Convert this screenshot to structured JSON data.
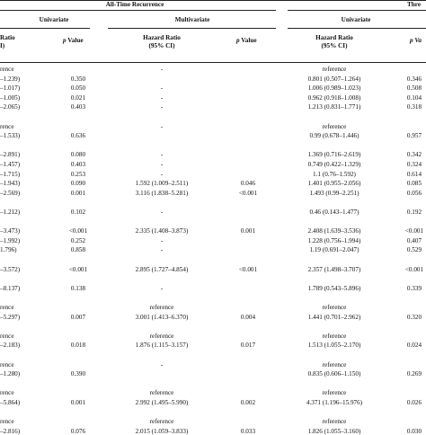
{
  "group_headers": {
    "all_time": "All-Time Recurrence",
    "three_partial": "Thre"
  },
  "sub_headers": {
    "univariate_left": "Univariate",
    "multivariate": "Multivariate",
    "univariate_right": "Univariate"
  },
  "columns": {
    "hr_left_line1": "Ratio",
    "hr_left_line2": "I)",
    "p_left_italic": "p",
    "p_left_rest": " Value",
    "hr_mid_line1": "Hazard Ratio",
    "hr_mid_line2": "(95% CI)",
    "p_mid_italic": "p",
    "p_mid_rest": " Value",
    "hr_right_line1": "Hazard Ratio",
    "hr_right_line2": "(95% CI)",
    "p_right_partial": "p Va"
  },
  "rows": [
    {
      "c1": "rence",
      "c2": "",
      "c3": "-",
      "c4": "",
      "c5": "reference",
      "c6": ""
    },
    {
      "c1": "–1.239)",
      "c2": "0.350",
      "c3": "",
      "c4": "",
      "c5": "0.801 (0.507–1.264)",
      "c6": "0.346"
    },
    {
      "c1": "–1.017)",
      "c2": "0.050",
      "c3": "-",
      "c4": "",
      "c5": "1.006 (0.989–1.023)",
      "c6": "0.508"
    },
    {
      "c1": "–1.005)",
      "c2": "0.021",
      "c3": "-",
      "c4": "",
      "c5": "0.962 (0.918–1.008)",
      "c6": "0.104"
    },
    {
      "c1": "–2.065)",
      "c2": "0.403",
      "c3": "-",
      "c4": "",
      "c5": "1.213 (0.831–1.771)",
      "c6": "0.318"
    },
    {
      "c1": "",
      "c2": "",
      "c3": "",
      "c4": "",
      "c5": "",
      "c6": ""
    },
    {
      "c1": "rence",
      "c2": "",
      "c3": "-",
      "c4": "",
      "c5": "reference",
      "c6": ""
    },
    {
      "c1": "–1.533)",
      "c2": "0.636",
      "c3": "",
      "c4": "",
      "c5": "0.99 (0.678–1.446)",
      "c6": "0.957"
    },
    {
      "c1": "",
      "c2": "",
      "c3": "",
      "c4": "",
      "c5": "",
      "c6": ""
    },
    {
      "c1": "–2.891)",
      "c2": "0.080",
      "c3": "-",
      "c4": "",
      "c5": "1.369 (0.716–2.619)",
      "c6": "0.342"
    },
    {
      "c1": "–1.457)",
      "c2": "0.403",
      "c3": "-",
      "c4": "",
      "c5": "0.749 (0.422–1.329)",
      "c6": "0.324"
    },
    {
      "c1": "–1.715)",
      "c2": "0.253",
      "c3": "-",
      "c4": "",
      "c5": "1.1 (0.76–1.592)",
      "c6": "0.614"
    },
    {
      "c1": "–1.943)",
      "c2": "0.090",
      "c3": "1.592 (1.009–2.511)",
      "c4": "0.046",
      "c5": "1.401 (0.955–2.056)",
      "c6": "0.085"
    },
    {
      "c1": "–2.569)",
      "c2": "0.001",
      "c3": "3.116 (1.838–5.281)",
      "c4": "<0.001",
      "c5": "1.493 (0.99–2.251)",
      "c6": "0.056"
    },
    {
      "c1": "",
      "c2": "",
      "c3": "",
      "c4": "",
      "c5": "",
      "c6": ""
    },
    {
      "c1": "–1.212)",
      "c2": "0.102",
      "c3": "-",
      "c4": "",
      "c5": "0.46 (0.143–1.477)",
      "c6": "0.192"
    },
    {
      "c1": "",
      "c2": "",
      "c3": "",
      "c4": "",
      "c5": "",
      "c6": ""
    },
    {
      "c1": "–3.473)",
      "c2": "<0.001",
      "c3": "2.335 (1.408–3.873)",
      "c4": "0.001",
      "c5": "2.408 (1.639–3.536)",
      "c6": "<0.001"
    },
    {
      "c1": "–1.992)",
      "c2": "0.252",
      "c3": "-",
      "c4": "",
      "c5": "1.228 (0.756–1.994)",
      "c6": "0.407"
    },
    {
      "c1": "1.796)",
      "c2": "0.858",
      "c3": "-",
      "c4": "",
      "c5": "1.19 (0.691–2.047)",
      "c6": "0.529"
    },
    {
      "c1": "",
      "c2": "",
      "c3": "",
      "c4": "",
      "c5": "",
      "c6": ""
    },
    {
      "c1": "–3.572)",
      "c2": "<0.001",
      "c3": "2.895 (1.727–4.854)",
      "c4": "<0.001",
      "c5": "2.357 (1.498–3.707)",
      "c6": "<0.001"
    },
    {
      "c1": "",
      "c2": "",
      "c3": "",
      "c4": "",
      "c5": "",
      "c6": ""
    },
    {
      "c1": "–8.137)",
      "c2": "0.138",
      "c3": "-",
      "c4": "",
      "c5": "1.789 (0.543–5.896)",
      "c6": "0.339"
    },
    {
      "c1": "",
      "c2": "",
      "c3": "",
      "c4": "",
      "c5": "",
      "c6": ""
    },
    {
      "c1": "rence",
      "c2": "",
      "c3": "reference",
      "c4": "",
      "c5": "reference",
      "c6": ""
    },
    {
      "c1": "–5.297)",
      "c2": "0.007",
      "c3": "3.001 (1.413–6.370)",
      "c4": "0.004",
      "c5": "1.441 (0.701–2.962)",
      "c6": "0.320"
    },
    {
      "c1": "",
      "c2": "",
      "c3": "",
      "c4": "",
      "c5": "",
      "c6": ""
    },
    {
      "c1": "rence",
      "c2": "",
      "c3": "reference",
      "c4": "",
      "c5": "reference",
      "c6": ""
    },
    {
      "c1": "–2.183)",
      "c2": "0.018",
      "c3": "1.876 (1.115–3.157)",
      "c4": "0.017",
      "c5": "1.513 (1.055–2.170)",
      "c6": "0.024"
    },
    {
      "c1": "",
      "c2": "",
      "c3": "",
      "c4": "",
      "c5": "",
      "c6": ""
    },
    {
      "c1": "rence",
      "c2": "",
      "c3": "-",
      "c4": "",
      "c5": "reference",
      "c6": ""
    },
    {
      "c1": "–1.280)",
      "c2": "0.390",
      "c3": "",
      "c4": "",
      "c5": "0.835 (0.606–1.150)",
      "c6": "0.269"
    },
    {
      "c1": "",
      "c2": "",
      "c3": "",
      "c4": "",
      "c5": "",
      "c6": ""
    },
    {
      "c1": "rence",
      "c2": "",
      "c3": "reference",
      "c4": "",
      "c5": "reference",
      "c6": ""
    },
    {
      "c1": "–5.864)",
      "c2": "0.001",
      "c3": "2.992 (1.495–5.990)",
      "c4": "0.002",
      "c5": "4.371 (1.196–15.976)",
      "c6": "0.026"
    },
    {
      "c1": "",
      "c2": "",
      "c3": "",
      "c4": "",
      "c5": "",
      "c6": ""
    },
    {
      "c1": "rence",
      "c2": "",
      "c3": "reference",
      "c4": "",
      "c5": "reference",
      "c6": ""
    },
    {
      "c1": "–2.816)",
      "c2": "0.076",
      "c3": "2.015 (1.059–3.833)",
      "c4": "0.033",
      "c5": "1.826 (1.055–3.160)",
      "c6": "0.030"
    }
  ]
}
